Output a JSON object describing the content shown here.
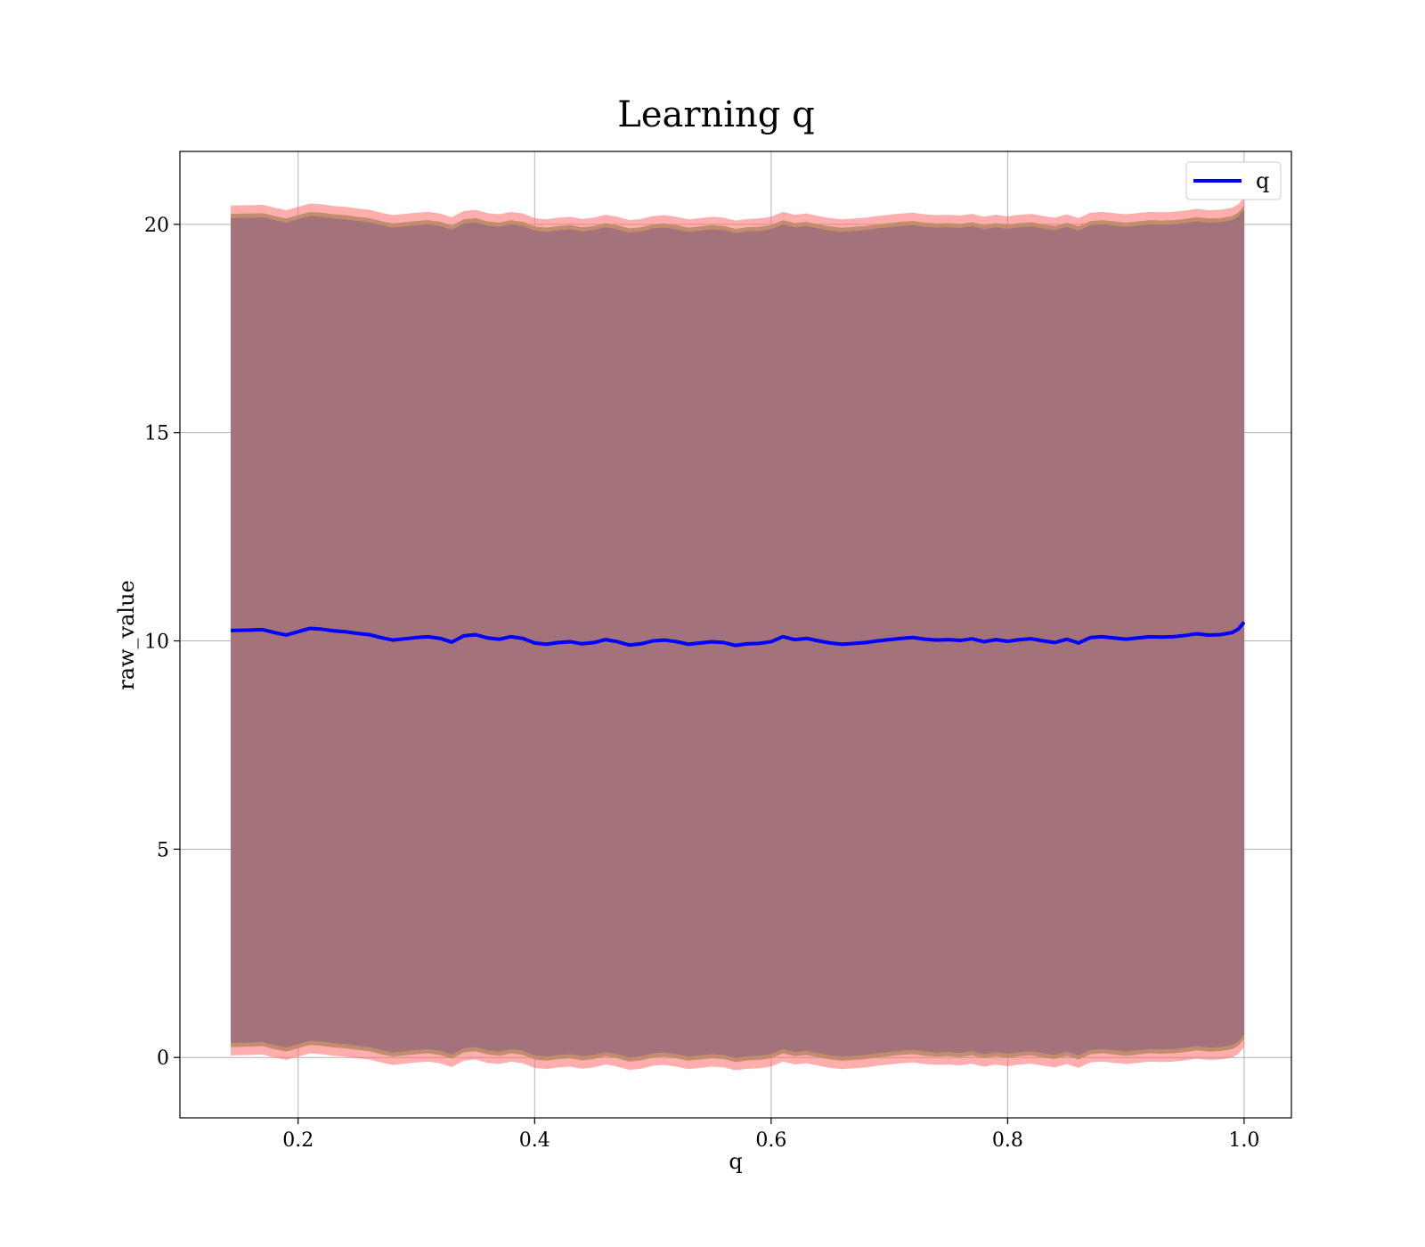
{
  "chart_data": {
    "type": "line",
    "title": "Learning q",
    "xlabel": "q",
    "ylabel": "raw_value",
    "xlim": [
      0.1,
      1.04
    ],
    "ylim": [
      -1.45,
      21.75
    ],
    "x_ticks": [
      0.2,
      0.4,
      0.6,
      0.8,
      1.0
    ],
    "x_tick_labels": [
      "0.2",
      "0.4",
      "0.6",
      "0.8",
      "1.0"
    ],
    "y_ticks": [
      0,
      5,
      10,
      15,
      20
    ],
    "y_tick_labels": [
      "0",
      "5",
      "10",
      "15",
      "20"
    ],
    "grid": true,
    "legend": {
      "position": "top-right",
      "entries": [
        "q"
      ]
    },
    "colors": {
      "line": "#0000ff",
      "outer_band": "#ff6b6b",
      "mid_band": "#c08a6a",
      "inner_band": "#a3727b",
      "grid": "#b0b0b0"
    },
    "series": [
      {
        "name": "q",
        "x": [
          0.143,
          0.16,
          0.17,
          0.18,
          0.19,
          0.2,
          0.21,
          0.22,
          0.23,
          0.24,
          0.25,
          0.26,
          0.27,
          0.28,
          0.29,
          0.3,
          0.31,
          0.32,
          0.33,
          0.34,
          0.35,
          0.36,
          0.37,
          0.38,
          0.39,
          0.4,
          0.41,
          0.42,
          0.43,
          0.44,
          0.45,
          0.46,
          0.47,
          0.48,
          0.49,
          0.5,
          0.51,
          0.52,
          0.53,
          0.54,
          0.55,
          0.56,
          0.57,
          0.58,
          0.59,
          0.6,
          0.61,
          0.62,
          0.63,
          0.64,
          0.65,
          0.66,
          0.67,
          0.68,
          0.69,
          0.7,
          0.71,
          0.72,
          0.73,
          0.74,
          0.75,
          0.76,
          0.77,
          0.78,
          0.79,
          0.8,
          0.81,
          0.82,
          0.83,
          0.84,
          0.85,
          0.86,
          0.87,
          0.88,
          0.89,
          0.9,
          0.91,
          0.92,
          0.93,
          0.94,
          0.95,
          0.96,
          0.97,
          0.98,
          0.99,
          0.995,
          1.0
        ],
        "y": [
          10.25,
          10.26,
          10.27,
          10.2,
          10.14,
          10.22,
          10.3,
          10.28,
          10.24,
          10.22,
          10.18,
          10.15,
          10.08,
          10.02,
          10.05,
          10.08,
          10.1,
          10.06,
          9.97,
          10.12,
          10.15,
          10.07,
          10.04,
          10.1,
          10.06,
          9.95,
          9.92,
          9.96,
          9.98,
          9.93,
          9.96,
          10.03,
          9.98,
          9.9,
          9.93,
          10.0,
          10.02,
          9.98,
          9.92,
          9.95,
          9.98,
          9.96,
          9.89,
          9.93,
          9.94,
          9.98,
          10.1,
          10.03,
          10.06,
          10.0,
          9.95,
          9.92,
          9.94,
          9.96,
          10.0,
          10.03,
          10.06,
          10.08,
          10.04,
          10.02,
          10.03,
          10.01,
          10.05,
          9.98,
          10.03,
          9.99,
          10.03,
          10.05,
          10.0,
          9.96,
          10.04,
          9.95,
          10.08,
          10.1,
          10.07,
          10.04,
          10.07,
          10.1,
          10.09,
          10.1,
          10.13,
          10.17,
          10.14,
          10.15,
          10.2,
          10.28,
          10.45
        ]
      }
    ],
    "band_offsets": {
      "outer": 10.2,
      "mid": 10.0,
      "inner": 9.9
    }
  }
}
